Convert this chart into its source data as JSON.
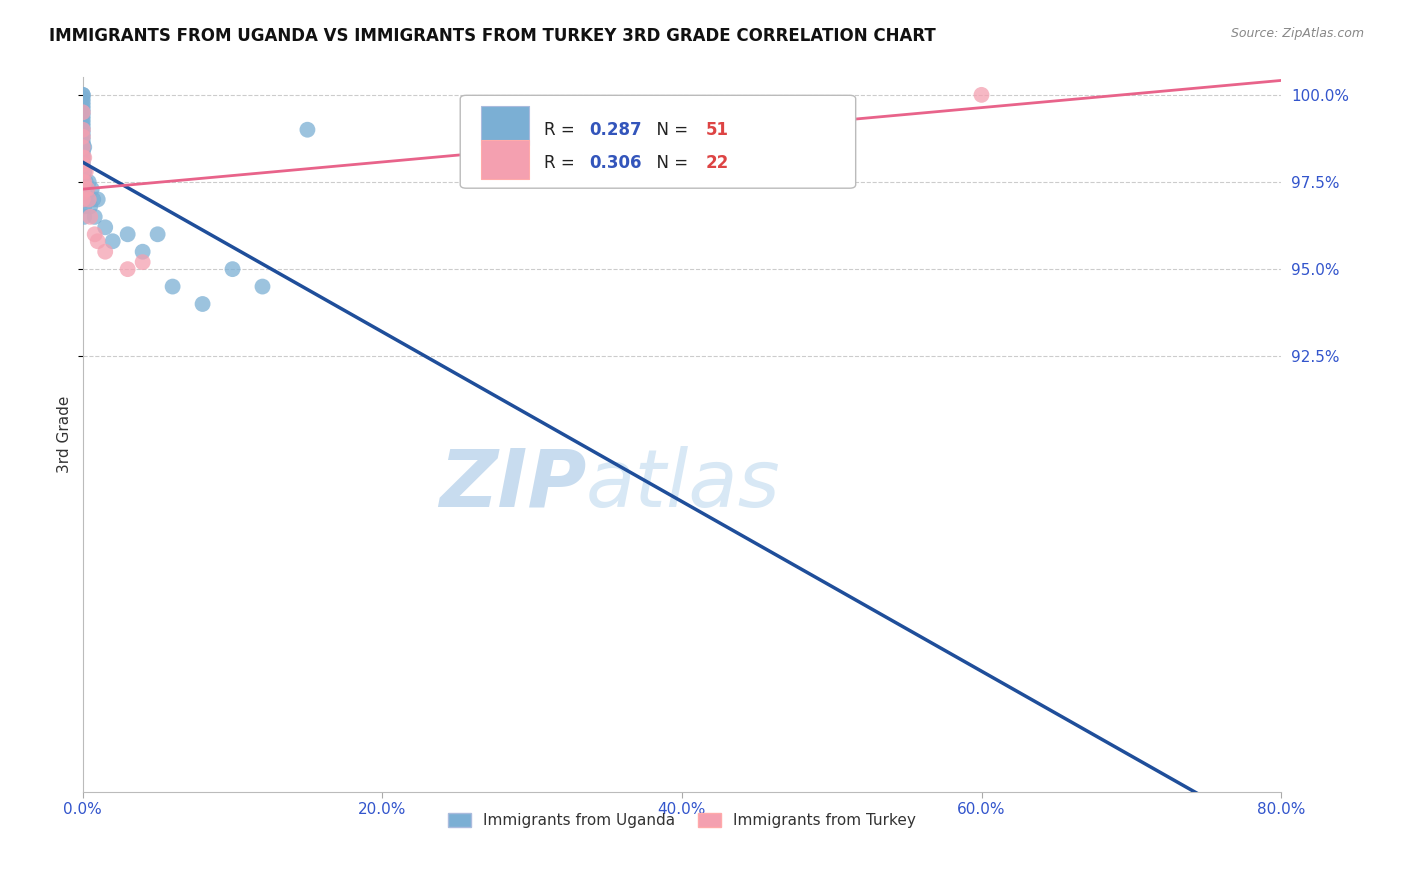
{
  "title": "IMMIGRANTS FROM UGANDA VS IMMIGRANTS FROM TURKEY 3RD GRADE CORRELATION CHART",
  "source_text": "Source: ZipAtlas.com",
  "ylabel": "3rd Grade",
  "xlim": [
    0.0,
    80.0
  ],
  "ylim": [
    80.0,
    100.5
  ],
  "xticks": [
    0.0,
    20.0,
    40.0,
    60.0,
    80.0
  ],
  "yticks": [
    92.5,
    95.0,
    97.5,
    100.0
  ],
  "r_uganda": 0.287,
  "n_uganda": 51,
  "r_turkey": 0.306,
  "n_turkey": 22,
  "color_uganda": "#7BAFD4",
  "color_turkey": "#F4A0B0",
  "trendline_color_uganda": "#1F4E9A",
  "trendline_color_turkey": "#E8638A",
  "legend_r_color": "#3355BB",
  "legend_n_color": "#DD4444",
  "watermark_zip_color": "#C8DCEF",
  "watermark_atlas_color": "#C8DCEF",
  "uganda_x": [
    0.0,
    0.0,
    0.0,
    0.0,
    0.0,
    0.0,
    0.0,
    0.0,
    0.0,
    0.0,
    0.0,
    0.0,
    0.0,
    0.0,
    0.0,
    0.0,
    0.0,
    0.0,
    0.0,
    0.0,
    0.0,
    0.0,
    0.0,
    0.0,
    0.0,
    0.0,
    0.0,
    0.1,
    0.1,
    0.1,
    0.1,
    0.1,
    0.2,
    0.2,
    0.3,
    0.4,
    0.5,
    0.6,
    0.7,
    0.8,
    1.0,
    1.5,
    2.0,
    3.0,
    4.0,
    5.0,
    6.0,
    8.0,
    10.0,
    12.0,
    15.0
  ],
  "uganda_y": [
    100.0,
    100.0,
    99.9,
    99.8,
    99.7,
    99.6,
    99.5,
    99.4,
    99.3,
    99.2,
    99.1,
    99.0,
    98.9,
    98.8,
    98.7,
    98.6,
    98.5,
    98.4,
    98.3,
    98.2,
    98.1,
    98.0,
    97.9,
    97.8,
    97.6,
    97.4,
    97.2,
    98.5,
    97.8,
    97.2,
    96.8,
    96.5,
    97.5,
    97.0,
    97.2,
    97.5,
    96.8,
    97.3,
    97.0,
    96.5,
    97.0,
    96.2,
    95.8,
    96.0,
    95.5,
    96.0,
    94.5,
    94.0,
    95.0,
    94.5,
    99.0
  ],
  "turkey_x": [
    0.0,
    0.0,
    0.0,
    0.0,
    0.0,
    0.0,
    0.0,
    0.0,
    0.0,
    0.0,
    0.1,
    0.1,
    0.2,
    0.3,
    0.4,
    0.5,
    0.8,
    1.0,
    1.5,
    3.0,
    4.0,
    60.0
  ],
  "turkey_y": [
    99.5,
    99.0,
    98.8,
    98.5,
    98.2,
    98.0,
    97.8,
    97.5,
    97.2,
    97.0,
    98.2,
    97.5,
    97.8,
    97.3,
    97.0,
    96.5,
    96.0,
    95.8,
    95.5,
    95.0,
    95.2,
    100.0
  ]
}
